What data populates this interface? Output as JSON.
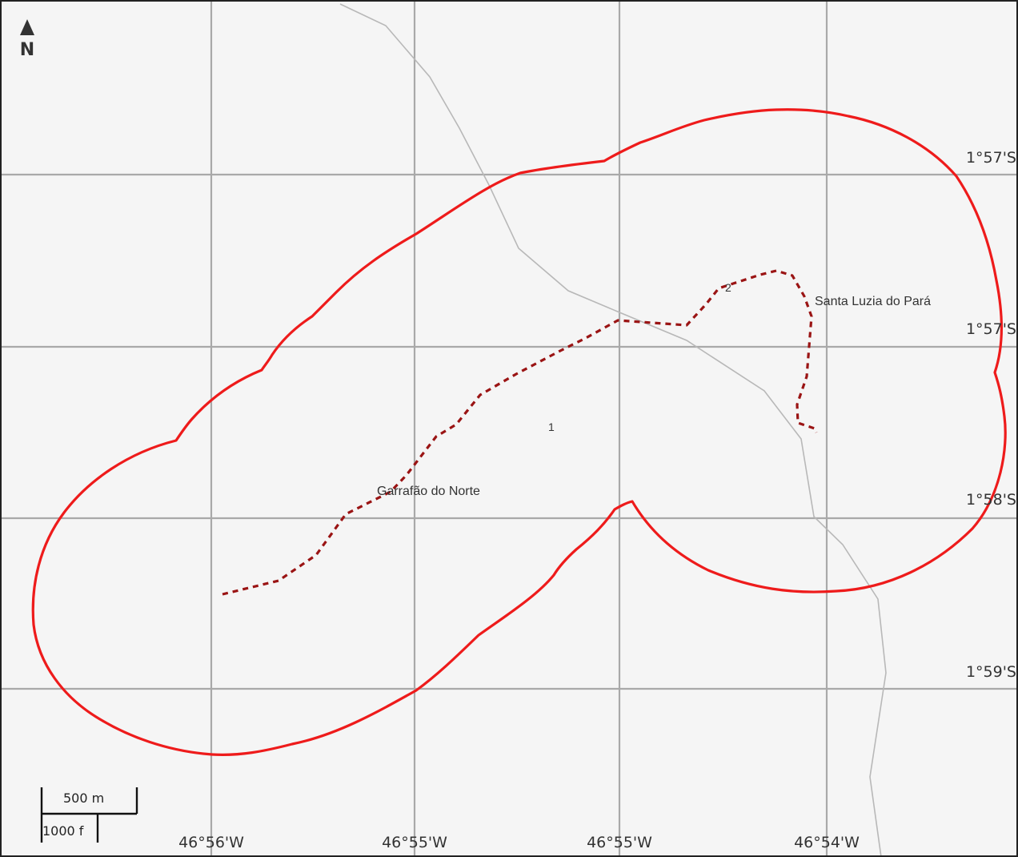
{
  "map": {
    "colors": {
      "background": "#f5f5f5",
      "frame": "#222222",
      "grid": "#a9a9a9",
      "road": "#b8b8b8",
      "buffer_outline": "#ee1b1b",
      "track": "#9a1414"
    },
    "north_arrow": {
      "label": "N"
    },
    "graticule": {
      "latitudes": [
        "1°57'S",
        "1°57'S",
        "1°58'S",
        "1°59'S"
      ],
      "longitudes": [
        "46°56'W",
        "46°55'W",
        "46°55'W",
        "46°54'W"
      ]
    },
    "places": {
      "garrafao": "Garrafão do Norte",
      "santa_luzia": "Santa Luzia do Pará"
    },
    "waypoints": {
      "wp1": "1",
      "wp2": "2"
    },
    "scale_bar": {
      "metric_label": "500 m",
      "imperial_label": "1000 f"
    }
  }
}
